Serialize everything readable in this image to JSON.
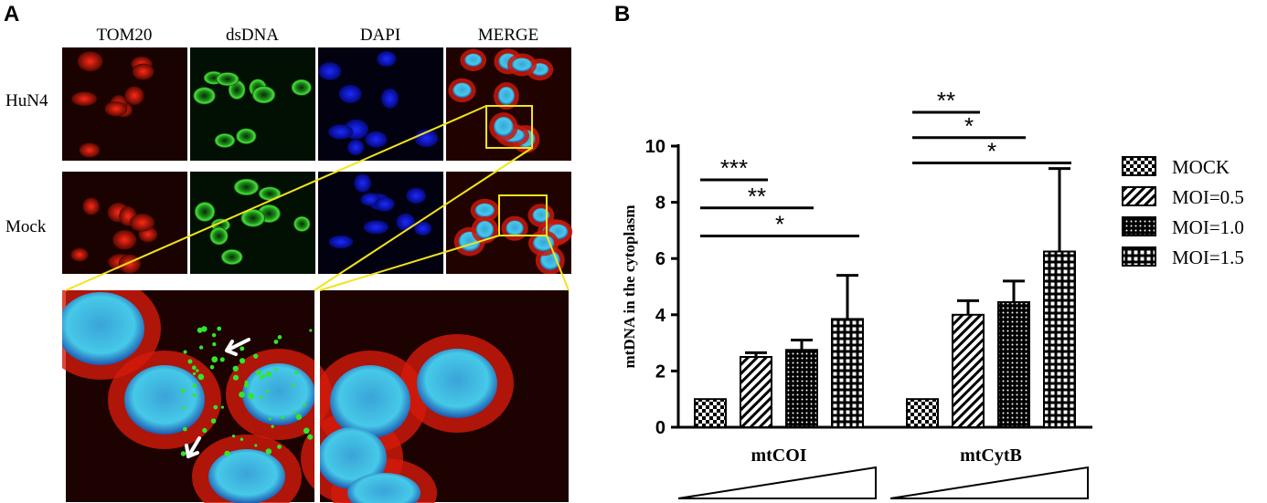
{
  "panelA": {
    "letter": "A",
    "columns": [
      "TOM20",
      "dsDNA",
      "DAPI",
      "MERGE"
    ],
    "rows": [
      "HuN4",
      "Mock"
    ]
  },
  "panelB": {
    "letter": "B"
  },
  "chart_data": {
    "type": "bar",
    "ylabel": "mtDNA in the cytoplasm",
    "ylim": [
      0,
      10
    ],
    "yticks": [
      0,
      2,
      4,
      6,
      8,
      10
    ],
    "categories": [
      "mtCOI",
      "mtCytB"
    ],
    "series": [
      {
        "name": "MOCK",
        "pattern": "checker",
        "values": [
          1.0,
          1.0
        ],
        "errors": [
          0,
          0
        ]
      },
      {
        "name": "MOI=0.5",
        "pattern": "diagonal",
        "values": [
          2.5,
          4.0
        ],
        "errors": [
          0.15,
          0.5
        ]
      },
      {
        "name": "MOI=1.0",
        "pattern": "dots",
        "values": [
          2.75,
          4.45
        ],
        "errors": [
          0.35,
          0.75
        ]
      },
      {
        "name": "MOI=1.5",
        "pattern": "grid",
        "values": [
          3.85,
          6.25
        ],
        "errors": [
          1.55,
          2.95
        ]
      }
    ],
    "significance": [
      {
        "category": 0,
        "from": 0,
        "to": 1,
        "label": "***",
        "y": 8.8
      },
      {
        "category": 0,
        "from": 0,
        "to": 2,
        "label": "**",
        "y": 7.8
      },
      {
        "category": 0,
        "from": 0,
        "to": 3,
        "label": "*",
        "y": 6.8
      },
      {
        "category": 1,
        "from": 0,
        "to": 1,
        "label": "**",
        "y": 11.2
      },
      {
        "category": 1,
        "from": 0,
        "to": 2,
        "label": "*",
        "y": 10.3
      },
      {
        "category": 1,
        "from": 0,
        "to": 3,
        "label": "*",
        "y": 9.4
      }
    ],
    "legend_position": "right",
    "gradient_triangles": true
  }
}
